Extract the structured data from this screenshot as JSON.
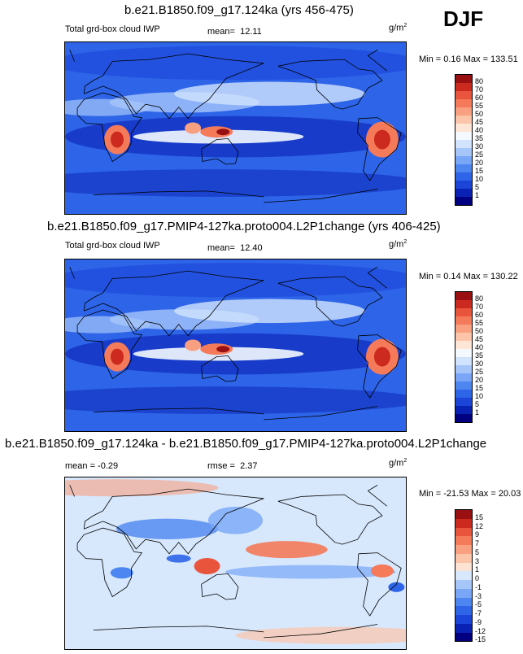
{
  "season": "DJF",
  "colors": {
    "pos_scale": [
      "#000080",
      "#0a22b4",
      "#1b44d8",
      "#2d64e8",
      "#4d86f0",
      "#79a6f6",
      "#a6c6fa",
      "#d1e3fd",
      "#f4f9ff",
      "#fde6d6",
      "#fcc5a9",
      "#f9a080",
      "#f47a5a",
      "#e9553c",
      "#cc2a1f",
      "#981012"
    ],
    "diff_scale": [
      "#000080",
      "#0a22b4",
      "#1b44d8",
      "#2d64e8",
      "#4d86f0",
      "#79a6f6",
      "#a6c6fa",
      "#d7e8fd",
      "#fde3d4",
      "#fcc5a9",
      "#f9a080",
      "#f47a5a",
      "#e9553c",
      "#cc2a1f",
      "#981012"
    ]
  },
  "panels": [
    {
      "title": "b.e21.B1850.f09_g17.124ka (yrs 456-475)",
      "left_label": "Total grd-box cloud IWP",
      "stat_label": "mean=",
      "stat_value": "12.11",
      "units": "g/m",
      "units_exp": "2",
      "minmax": "Min =   0.16 Max = 133.51"
    },
    {
      "title": "b.e21.B1850.f09_g17.PMIP4-127ka.proto004.L2P1change (yrs 406-425)",
      "left_label": "Total grd-box cloud IWP",
      "stat_label": "mean=",
      "stat_value": "12.40",
      "units": "g/m",
      "units_exp": "2",
      "minmax": "Min =   0.14 Max = 130.22"
    },
    {
      "title": "b.e21.B1850.f09_g17.124ka - b.e21.B1850.f09_g17.PMIP4-127ka.proto004.L2P1change",
      "left_label": "mean =  -0.29",
      "stat_label": "rmse =",
      "stat_value": "2.37",
      "units": "g/m",
      "units_exp": "2",
      "minmax": "Min = -21.53 Max =  20.03"
    }
  ],
  "chart_data": [
    {
      "type": "heatmap",
      "title": "b.e21.B1850.f09_g17.124ka (yrs 456-475)",
      "variable": "Total grd-box cloud IWP",
      "units": "g/m2",
      "season": "DJF",
      "mean": 12.11,
      "min": 0.16,
      "max": 133.51,
      "colorbar_levels": [
        1,
        5,
        10,
        15,
        20,
        25,
        30,
        35,
        40,
        45,
        50,
        55,
        60,
        70,
        80
      ]
    },
    {
      "type": "heatmap",
      "title": "b.e21.B1850.f09_g17.PMIP4-127ka.proto004.L2P1change (yrs 406-425)",
      "variable": "Total grd-box cloud IWP",
      "units": "g/m2",
      "season": "DJF",
      "mean": 12.4,
      "min": 0.14,
      "max": 130.22,
      "colorbar_levels": [
        1,
        5,
        10,
        15,
        20,
        25,
        30,
        35,
        40,
        45,
        50,
        55,
        60,
        70,
        80
      ]
    },
    {
      "type": "heatmap",
      "title": "b.e21.B1850.f09_g17.124ka - b.e21.B1850.f09_g17.PMIP4-127ka.proto004.L2P1change",
      "units": "g/m2",
      "season": "DJF",
      "mean": -0.29,
      "rmse": 2.37,
      "min": -21.53,
      "max": 20.03,
      "colorbar_levels": [
        -15,
        -12,
        -9,
        -7,
        -5,
        -3,
        -1,
        0,
        1,
        3,
        5,
        7,
        9,
        12,
        15
      ]
    }
  ],
  "colorbar_labels": {
    "pos": [
      "80",
      "70",
      "60",
      "55",
      "50",
      "45",
      "40",
      "35",
      "30",
      "25",
      "20",
      "15",
      "10",
      "5",
      "1"
    ],
    "diff": [
      "15",
      "12",
      "9",
      "7",
      "5",
      "3",
      "1",
      "0",
      "-1",
      "-3",
      "-5",
      "-7",
      "-9",
      "-12",
      "-15"
    ]
  }
}
